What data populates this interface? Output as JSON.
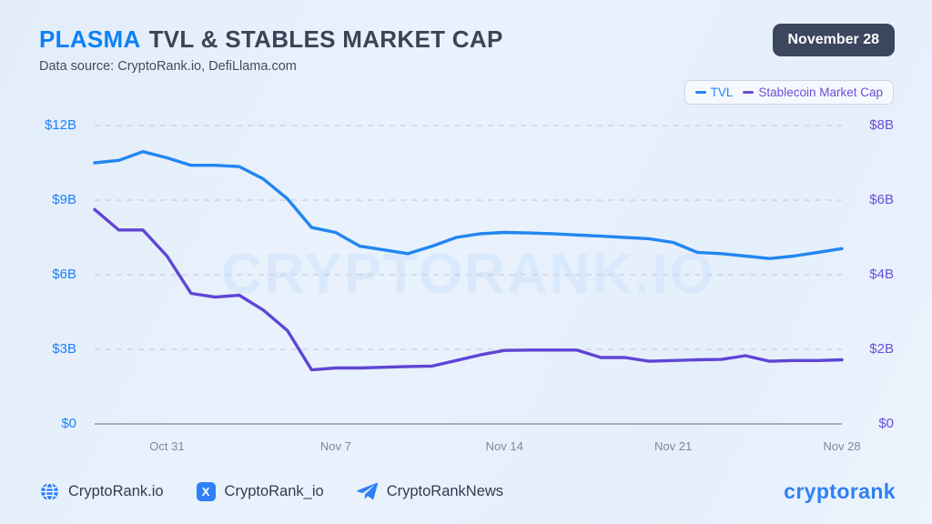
{
  "header": {
    "title_highlight": "PLASMA",
    "title_rest": "TVL & STABLES MARKET CAP",
    "subtitle": "Data source: CryptoRank.io, DefiLlama.com",
    "date_badge": "November 28"
  },
  "legend": {
    "items": [
      {
        "label": "TVL",
        "color": "#2186f2"
      },
      {
        "label": "Stablecoin Market Cap",
        "color": "#6b4ed9"
      }
    ]
  },
  "watermark": "CRYPTORANK.IO",
  "chart_data": {
    "type": "line",
    "title": "PLASMA TVL & Stables Market Cap",
    "grid": "horizontal-dashed",
    "legend_position": "top-right",
    "x": [
      "Oct 28",
      "Oct 29",
      "Oct 30",
      "Oct 31",
      "Nov 1",
      "Nov 2",
      "Nov 3",
      "Nov 4",
      "Nov 5",
      "Nov 6",
      "Nov 7",
      "Nov 8",
      "Nov 9",
      "Nov 10",
      "Nov 11",
      "Nov 12",
      "Nov 13",
      "Nov 14",
      "Nov 15",
      "Nov 16",
      "Nov 17",
      "Nov 18",
      "Nov 19",
      "Nov 20",
      "Nov 21",
      "Nov 22",
      "Nov 23",
      "Nov 24",
      "Nov 25",
      "Nov 26",
      "Nov 27",
      "Nov 28"
    ],
    "series": [
      {
        "name": "TVL",
        "axis": "left",
        "unit": "$B",
        "color": "#2186f2",
        "values": [
          10.5,
          10.6,
          10.95,
          10.7,
          10.4,
          10.4,
          10.35,
          9.85,
          9.05,
          7.9,
          7.7,
          7.15,
          7.0,
          6.85,
          7.15,
          7.5,
          7.65,
          7.7,
          7.68,
          7.65,
          7.6,
          7.55,
          7.5,
          7.45,
          7.3,
          6.9,
          6.85,
          6.75,
          6.65,
          6.75,
          6.9,
          7.05
        ]
      },
      {
        "name": "Stablecoin Market Cap",
        "axis": "right",
        "unit": "$B",
        "color": "#5f45d4",
        "values": [
          5.75,
          5.2,
          5.2,
          4.5,
          3.5,
          3.4,
          3.45,
          3.05,
          2.5,
          1.45,
          1.5,
          1.5,
          1.52,
          1.54,
          1.55,
          1.7,
          1.85,
          1.97,
          1.98,
          1.98,
          1.98,
          1.78,
          1.78,
          1.68,
          1.7,
          1.72,
          1.73,
          1.83,
          1.68,
          1.7,
          1.7,
          1.72
        ]
      }
    ],
    "left_axis": {
      "min": 0,
      "max": 12,
      "ticks": [
        {
          "label": "$12B",
          "value": 12
        },
        {
          "label": "$9B",
          "value": 9
        },
        {
          "label": "$6B",
          "value": 6
        },
        {
          "label": "$3B",
          "value": 3
        },
        {
          "label": "$0",
          "value": 0
        }
      ]
    },
    "right_axis": {
      "min": 0,
      "max": 8,
      "ticks": [
        {
          "label": "$8B",
          "value": 8
        },
        {
          "label": "$6B",
          "value": 6
        },
        {
          "label": "$4B",
          "value": 4
        },
        {
          "label": "$2B",
          "value": 2
        },
        {
          "label": "$0",
          "value": 0
        }
      ]
    },
    "x_ticks": [
      {
        "label": "Oct 31",
        "index": 3
      },
      {
        "label": "Nov 7",
        "index": 10
      },
      {
        "label": "Nov 14",
        "index": 17
      },
      {
        "label": "Nov 21",
        "index": 24
      },
      {
        "label": "Nov 28",
        "index": 31
      }
    ]
  },
  "footer": {
    "socials": [
      {
        "icon": "globe-icon",
        "label": "CryptoRank.io"
      },
      {
        "icon": "x-icon",
        "label": "CryptoRank_io"
      },
      {
        "icon": "telegram-icon",
        "label": "CryptoRankNews"
      }
    ],
    "logo_text": "cryptorank"
  },
  "colors": {
    "accent_blue": "#0c80f5",
    "accent_purple": "#6b4ed9",
    "badge_bg": "#3c465e",
    "title_dark": "#3b4457",
    "background": "#e8f1fb"
  }
}
